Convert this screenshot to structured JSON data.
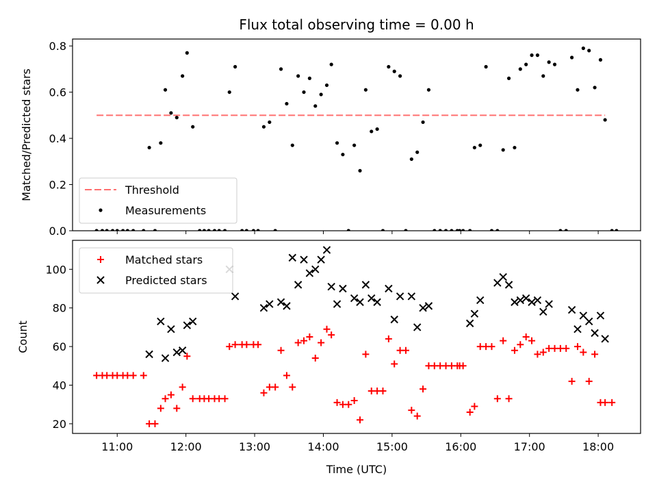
{
  "title": "Flux total observing time = 0.00 h",
  "chart_data": [
    {
      "type": "scatter",
      "ylabel": "Matched/Predicted stars",
      "xlabel": "",
      "xlim": [
        "10:21",
        "18:37"
      ],
      "ylim": [
        0,
        0.83
      ],
      "yticks": [
        "0.0",
        "0.2",
        "0.4",
        "0.6",
        "0.8"
      ],
      "ytick_values": [
        0,
        0.2,
        0.4,
        0.6,
        0.8
      ],
      "legend_position": "lower-left",
      "threshold": {
        "name": "Threshold",
        "value": 0.5,
        "x_range": [
          "10:42",
          "18:06"
        ],
        "color": "#ff6f6f",
        "style": "dashed"
      },
      "series": [
        {
          "name": "Measurements",
          "marker": "dot",
          "color": "#000000",
          "points": [
            [
              "10:42",
              0
            ],
            [
              "10:47",
              0
            ],
            [
              "10:51",
              0
            ],
            [
              "10:56",
              0
            ],
            [
              "11:00",
              0
            ],
            [
              "11:05",
              0
            ],
            [
              "11:09",
              0
            ],
            [
              "11:14",
              0
            ],
            [
              "11:23",
              0
            ],
            [
              "11:28",
              0.36
            ],
            [
              "11:33",
              0
            ],
            [
              "11:38",
              0.38
            ],
            [
              "11:42",
              0.61
            ],
            [
              "11:47",
              0.51
            ],
            [
              "11:52",
              0.49
            ],
            [
              "11:57",
              0.67
            ],
            [
              "12:01",
              0.77
            ],
            [
              "12:06",
              0.45
            ],
            [
              "12:12",
              0
            ],
            [
              "12:16",
              0
            ],
            [
              "12:20",
              0
            ],
            [
              "12:25",
              0
            ],
            [
              "12:29",
              0
            ],
            [
              "12:34",
              0
            ],
            [
              "12:38",
              0.6
            ],
            [
              "12:43",
              0.71
            ],
            [
              "12:49",
              0
            ],
            [
              "12:53",
              0
            ],
            [
              "12:59",
              0
            ],
            [
              "13:03",
              0
            ],
            [
              "13:08",
              0.45
            ],
            [
              "13:13",
              0.47
            ],
            [
              "13:18",
              0
            ],
            [
              "13:23",
              0.7
            ],
            [
              "13:28",
              0.55
            ],
            [
              "13:33",
              0.37
            ],
            [
              "13:38",
              0.67
            ],
            [
              "13:43",
              0.6
            ],
            [
              "13:48",
              0.66
            ],
            [
              "13:53",
              0.54
            ],
            [
              "13:58",
              0.59
            ],
            [
              "14:03",
              0.63
            ],
            [
              "14:07",
              0.72
            ],
            [
              "14:12",
              0.38
            ],
            [
              "14:17",
              0.33
            ],
            [
              "14:22",
              0
            ],
            [
              "14:27",
              0.37
            ],
            [
              "14:32",
              0.26
            ],
            [
              "14:37",
              0.61
            ],
            [
              "14:42",
              0.43
            ],
            [
              "14:47",
              0.44
            ],
            [
              "14:52",
              0
            ],
            [
              "14:57",
              0.71
            ],
            [
              "15:02",
              0.69
            ],
            [
              "15:07",
              0.67
            ],
            [
              "15:12",
              0
            ],
            [
              "15:17",
              0.31
            ],
            [
              "15:22",
              0.34
            ],
            [
              "15:27",
              0.47
            ],
            [
              "15:32",
              0.61
            ],
            [
              "15:37",
              0
            ],
            [
              "15:42",
              0
            ],
            [
              "15:47",
              0
            ],
            [
              "15:52",
              0
            ],
            [
              "15:57",
              0
            ],
            [
              "15:59",
              0
            ],
            [
              "16:02",
              0
            ],
            [
              "16:08",
              0
            ],
            [
              "16:12",
              0.36
            ],
            [
              "16:17",
              0.37
            ],
            [
              "16:22",
              0.71
            ],
            [
              "16:27",
              0
            ],
            [
              "16:32",
              0
            ],
            [
              "16:37",
              0.35
            ],
            [
              "16:42",
              0.66
            ],
            [
              "16:47",
              0.36
            ],
            [
              "16:52",
              0.7
            ],
            [
              "16:57",
              0.72
            ],
            [
              "17:02",
              0.76
            ],
            [
              "17:07",
              0.76
            ],
            [
              "17:12",
              0.67
            ],
            [
              "17:17",
              0.73
            ],
            [
              "17:22",
              0.72
            ],
            [
              "17:27",
              0
            ],
            [
              "17:32",
              0
            ],
            [
              "17:37",
              0.75
            ],
            [
              "17:42",
              0.61
            ],
            [
              "17:47",
              0.79
            ],
            [
              "17:52",
              0.78
            ],
            [
              "17:57",
              0.62
            ],
            [
              "18:02",
              0.74
            ],
            [
              "18:06",
              0.48
            ],
            [
              "18:12",
              0
            ],
            [
              "18:16",
              0
            ]
          ]
        }
      ]
    },
    {
      "type": "scatter",
      "ylabel": "Count",
      "xlabel": "Time (UTC)",
      "xlim": [
        "10:21",
        "18:37"
      ],
      "ylim": [
        15,
        115
      ],
      "yticks": [
        "20",
        "40",
        "60",
        "80",
        "100"
      ],
      "ytick_values": [
        20,
        40,
        60,
        80,
        100
      ],
      "xticks": [
        "11:00",
        "12:00",
        "13:00",
        "14:00",
        "15:00",
        "16:00",
        "17:00",
        "18:00"
      ],
      "legend_position": "upper-left",
      "series": [
        {
          "name": "Matched stars",
          "marker": "plus",
          "color": "#ff0000",
          "points": [
            [
              "10:42",
              45
            ],
            [
              "10:47",
              45
            ],
            [
              "10:51",
              45
            ],
            [
              "10:56",
              45
            ],
            [
              "11:00",
              45
            ],
            [
              "11:05",
              45
            ],
            [
              "11:09",
              45
            ],
            [
              "11:14",
              45
            ],
            [
              "11:23",
              45
            ],
            [
              "11:28",
              20
            ],
            [
              "11:33",
              20
            ],
            [
              "11:38",
              28
            ],
            [
              "11:42",
              33
            ],
            [
              "11:47",
              35
            ],
            [
              "11:52",
              28
            ],
            [
              "11:57",
              39
            ],
            [
              "12:01",
              55
            ],
            [
              "12:06",
              33
            ],
            [
              "12:12",
              33
            ],
            [
              "12:16",
              33
            ],
            [
              "12:20",
              33
            ],
            [
              "12:25",
              33
            ],
            [
              "12:29",
              33
            ],
            [
              "12:34",
              33
            ],
            [
              "12:38",
              60
            ],
            [
              "12:43",
              61
            ],
            [
              "12:49",
              61
            ],
            [
              "12:53",
              61
            ],
            [
              "12:59",
              61
            ],
            [
              "13:03",
              61
            ],
            [
              "13:08",
              36
            ],
            [
              "13:13",
              39
            ],
            [
              "13:18",
              39
            ],
            [
              "13:23",
              58
            ],
            [
              "13:28",
              45
            ],
            [
              "13:33",
              39
            ],
            [
              "13:38",
              62
            ],
            [
              "13:43",
              63
            ],
            [
              "13:48",
              65
            ],
            [
              "13:53",
              54
            ],
            [
              "13:58",
              62
            ],
            [
              "14:03",
              69
            ],
            [
              "14:07",
              66
            ],
            [
              "14:12",
              31
            ],
            [
              "14:17",
              30
            ],
            [
              "14:22",
              30
            ],
            [
              "14:27",
              32
            ],
            [
              "14:32",
              22
            ],
            [
              "14:37",
              56
            ],
            [
              "14:42",
              37
            ],
            [
              "14:47",
              37
            ],
            [
              "14:52",
              37
            ],
            [
              "14:57",
              64
            ],
            [
              "15:02",
              51
            ],
            [
              "15:07",
              58
            ],
            [
              "15:12",
              58
            ],
            [
              "15:17",
              27
            ],
            [
              "15:22",
              24
            ],
            [
              "15:27",
              38
            ],
            [
              "15:32",
              50
            ],
            [
              "15:37",
              50
            ],
            [
              "15:42",
              50
            ],
            [
              "15:47",
              50
            ],
            [
              "15:52",
              50
            ],
            [
              "15:57",
              50
            ],
            [
              "15:59",
              50
            ],
            [
              "16:02",
              50
            ],
            [
              "16:08",
              26
            ],
            [
              "16:12",
              29
            ],
            [
              "16:17",
              60
            ],
            [
              "16:22",
              60
            ],
            [
              "16:27",
              60
            ],
            [
              "16:32",
              33
            ],
            [
              "16:37",
              63
            ],
            [
              "16:42",
              33
            ],
            [
              "16:47",
              58
            ],
            [
              "16:52",
              61
            ],
            [
              "16:57",
              65
            ],
            [
              "17:02",
              63
            ],
            [
              "17:07",
              56
            ],
            [
              "17:12",
              57
            ],
            [
              "17:17",
              59
            ],
            [
              "17:22",
              59
            ],
            [
              "17:27",
              59
            ],
            [
              "17:32",
              59
            ],
            [
              "17:37",
              42
            ],
            [
              "17:42",
              60
            ],
            [
              "17:47",
              57
            ],
            [
              "17:52",
              42
            ],
            [
              "17:57",
              56
            ],
            [
              "18:02",
              31
            ],
            [
              "18:06",
              31
            ],
            [
              "18:12",
              31
            ]
          ]
        },
        {
          "name": "Predicted stars",
          "marker": "x",
          "color": "#000000",
          "points": [
            [
              "11:28",
              56
            ],
            [
              "11:38",
              73
            ],
            [
              "11:42",
              54
            ],
            [
              "11:47",
              69
            ],
            [
              "11:52",
              57
            ],
            [
              "11:57",
              58
            ],
            [
              "12:01",
              71
            ],
            [
              "12:06",
              73
            ],
            [
              "12:38",
              100
            ],
            [
              "12:43",
              86
            ],
            [
              "13:08",
              80
            ],
            [
              "13:13",
              82
            ],
            [
              "13:23",
              83
            ],
            [
              "13:28",
              81
            ],
            [
              "13:33",
              106
            ],
            [
              "13:38",
              92
            ],
            [
              "13:43",
              105
            ],
            [
              "13:48",
              98
            ],
            [
              "13:53",
              100
            ],
            [
              "13:58",
              105
            ],
            [
              "14:03",
              110
            ],
            [
              "14:07",
              91
            ],
            [
              "14:12",
              82
            ],
            [
              "14:17",
              90
            ],
            [
              "14:27",
              85
            ],
            [
              "14:32",
              83
            ],
            [
              "14:37",
              92
            ],
            [
              "14:42",
              85
            ],
            [
              "14:47",
              83
            ],
            [
              "14:57",
              90
            ],
            [
              "15:02",
              74
            ],
            [
              "15:07",
              86
            ],
            [
              "15:17",
              86
            ],
            [
              "15:22",
              70
            ],
            [
              "15:27",
              80
            ],
            [
              "15:32",
              81
            ],
            [
              "16:08",
              72
            ],
            [
              "16:12",
              77
            ],
            [
              "16:17",
              84
            ],
            [
              "16:32",
              93
            ],
            [
              "16:37",
              96
            ],
            [
              "16:42",
              92
            ],
            [
              "16:47",
              83
            ],
            [
              "16:52",
              84
            ],
            [
              "16:57",
              85
            ],
            [
              "17:02",
              83
            ],
            [
              "17:07",
              84
            ],
            [
              "17:12",
              78
            ],
            [
              "17:17",
              82
            ],
            [
              "17:37",
              79
            ],
            [
              "17:42",
              69
            ],
            [
              "17:47",
              76
            ],
            [
              "17:52",
              73
            ],
            [
              "17:57",
              67
            ],
            [
              "18:02",
              76
            ],
            [
              "18:06",
              64
            ]
          ]
        }
      ]
    }
  ]
}
